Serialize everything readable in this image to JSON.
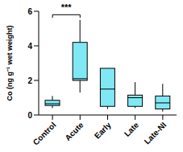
{
  "chart_data": {
    "type": "box",
    "y_label": "Co (ng g⁻¹ wet weight)",
    "categories": [
      "Control",
      "Acute",
      "Early",
      "Late",
      "Late-NI"
    ],
    "min": [
      0.4,
      1.3,
      0.35,
      0.4,
      0.2
    ],
    "q1": [
      0.55,
      2.0,
      0.5,
      0.5,
      0.35
    ],
    "median": [
      0.65,
      2.1,
      1.5,
      1.0,
      0.7
    ],
    "q3": [
      0.85,
      4.2,
      2.7,
      1.15,
      1.1
    ],
    "max": [
      1.1,
      5.5,
      2.7,
      1.9,
      1.8
    ],
    "color": "#80e8f5",
    "ylim": [
      0,
      6
    ],
    "yticks": [
      0,
      2,
      4,
      6
    ],
    "annotations": [
      {
        "text": "***",
        "from": "Control",
        "to": "Acute"
      }
    ]
  }
}
